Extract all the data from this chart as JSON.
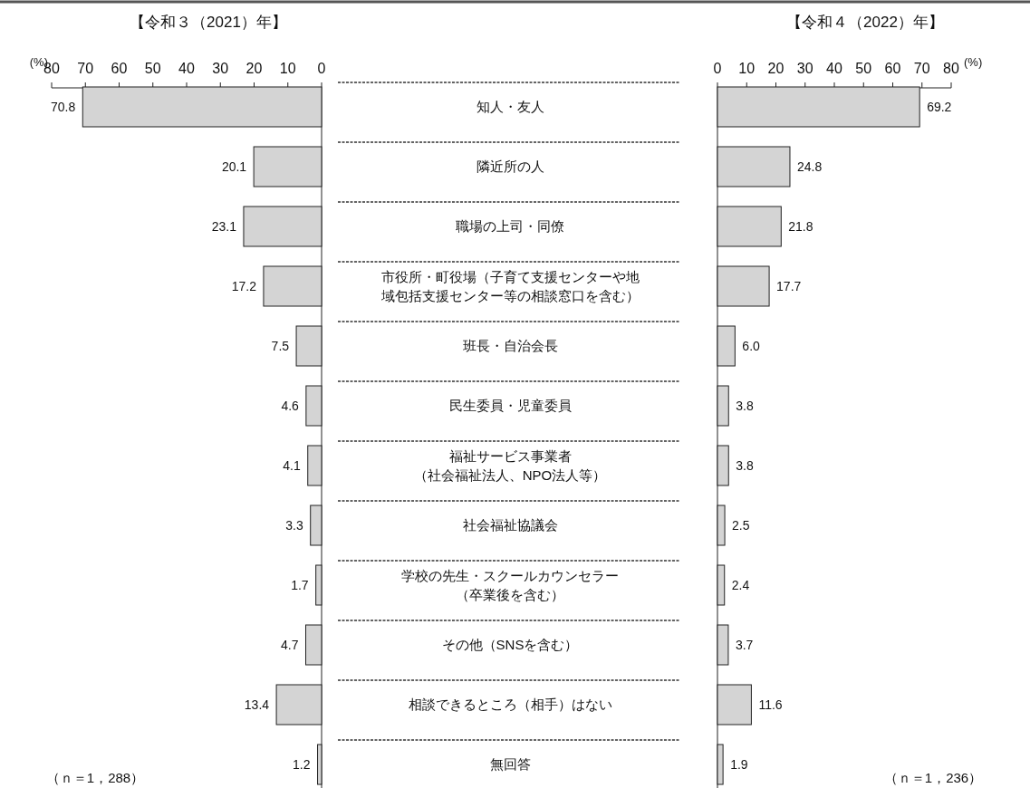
{
  "chart_data": [
    {
      "type": "bar",
      "orientation": "horizontal",
      "title": "【令和３（2021）年】",
      "xlabel": "(%)",
      "color": "#d4d4d4",
      "xlim": [
        80,
        0
      ],
      "xticks": [
        80,
        70,
        60,
        50,
        40,
        30,
        20,
        10,
        0
      ],
      "annotations": [
        "（ｎ＝1，288）"
      ],
      "categories": [
        "知人・友人",
        "隣近所の人",
        "職場の上司・同僚",
        "市役所・町役場（子育て支援センターや地域包括支援センター等の相談窓口を含む）",
        "班長・自治会長",
        "民生委員・児童委員",
        "福祉サービス事業者（社会福祉法人、NPO法人等）",
        "社会福祉協議会",
        "学校の先生・スクールカウンセラー（卒業後を含む）",
        "その他（SNSを含む）",
        "相談できるところ（相手）はない",
        "無回答"
      ],
      "values": [
        70.8,
        20.1,
        23.1,
        17.2,
        7.5,
        4.6,
        4.1,
        3.3,
        1.7,
        4.7,
        13.4,
        1.2
      ],
      "value_labels": [
        "70.8",
        "20.1",
        "23.1",
        "17.2",
        "7.5",
        "4.6",
        "4.1",
        "3.3",
        "1.7",
        "4.7",
        "13.4",
        "1.2"
      ]
    },
    {
      "type": "bar",
      "orientation": "horizontal",
      "title": "【令和４（2022）年】",
      "xlabel": "(%)",
      "color": "#d4d4d4",
      "xlim": [
        0,
        80
      ],
      "xticks": [
        0,
        10,
        20,
        30,
        40,
        50,
        60,
        70,
        80
      ],
      "annotations": [
        "（ｎ＝1，236）"
      ],
      "tick_labels": "x",
      "values": [
        69.2,
        24.8,
        21.8,
        17.7,
        6.0,
        3.8,
        3.8,
        2.5,
        2.4,
        3.7,
        11.6,
        1.9
      ],
      "value_labels": [
        "69.2",
        "24.8",
        "21.8",
        "17.7",
        "6.0",
        "3.8",
        "3.8",
        "2.5",
        "2.4",
        "3.7",
        "11.6",
        "1.9"
      ]
    }
  ]
}
